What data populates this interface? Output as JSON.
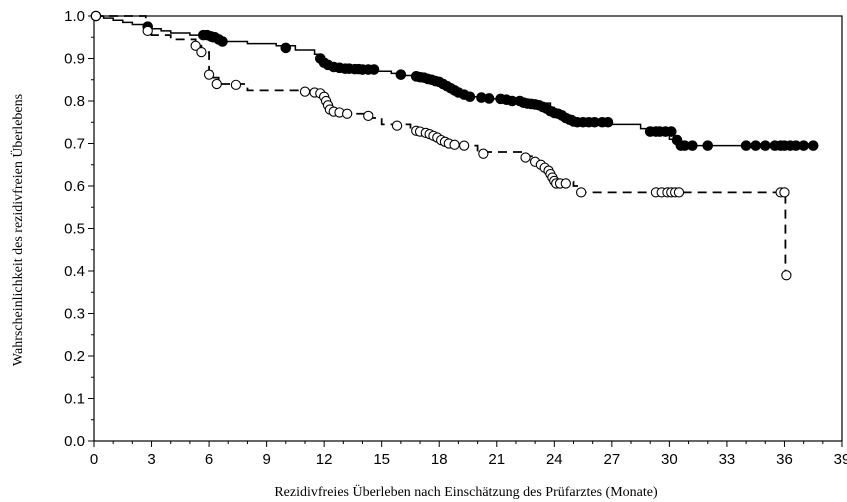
{
  "chart_data": {
    "type": "line",
    "xlabel": "Rezidivfreies Überleben nach Einschätzung des Prüfarztes (Monate)",
    "ylabel": "Wahrscheinlichkeit des rezidivfreien Überlebens",
    "xlim": [
      0,
      39
    ],
    "ylim": [
      0,
      1.0
    ],
    "x_ticks": [
      0,
      3,
      6,
      9,
      12,
      15,
      18,
      21,
      24,
      27,
      30,
      33,
      36,
      39
    ],
    "x_tick_labels": [
      "0",
      "3",
      "6",
      "9",
      "12",
      "15",
      "18",
      "21",
      "24",
      "27",
      "30",
      "33",
      "36",
      "39"
    ],
    "y_ticks": [
      0,
      0.1,
      0.2,
      0.3,
      0.4,
      0.5,
      0.6,
      0.7,
      0.8,
      0.9,
      1.0
    ],
    "y_tick_labels": [
      "0.0",
      "0.1",
      "0.2",
      "0.3",
      "0.4",
      "0.5",
      "0.6",
      "0.7",
      "0.8",
      "0.9",
      "1.0"
    ],
    "series": [
      {
        "style": "solid",
        "marker": "filled-circle",
        "color": "#000000",
        "steps": [
          [
            0,
            1.0
          ],
          [
            0.5,
            0.995
          ],
          [
            1.0,
            0.99
          ],
          [
            1.5,
            0.985
          ],
          [
            2.0,
            0.98
          ],
          [
            2.7,
            0.975
          ],
          [
            3.0,
            0.97
          ],
          [
            3.5,
            0.965
          ],
          [
            4.0,
            0.96
          ],
          [
            5.0,
            0.955
          ],
          [
            6.5,
            0.94
          ],
          [
            8.0,
            0.935
          ],
          [
            9.5,
            0.93
          ],
          [
            10.5,
            0.92
          ],
          [
            11.5,
            0.91
          ],
          [
            11.8,
            0.895
          ],
          [
            12.0,
            0.885
          ],
          [
            12.3,
            0.875
          ],
          [
            13.0,
            0.87
          ],
          [
            15.5,
            0.865
          ],
          [
            16.0,
            0.86
          ],
          [
            17.0,
            0.855
          ],
          [
            17.5,
            0.85
          ],
          [
            18.0,
            0.84
          ],
          [
            18.5,
            0.83
          ],
          [
            19.0,
            0.82
          ],
          [
            19.5,
            0.81
          ],
          [
            20.5,
            0.805
          ],
          [
            22.5,
            0.8
          ],
          [
            23.0,
            0.795
          ],
          [
            23.8,
            0.785
          ],
          [
            24.0,
            0.775
          ],
          [
            24.3,
            0.765
          ],
          [
            25.0,
            0.755
          ],
          [
            25.5,
            0.745
          ],
          [
            28.5,
            0.735
          ],
          [
            29.0,
            0.72
          ],
          [
            30.0,
            0.71
          ],
          [
            30.5,
            0.695
          ],
          [
            37.5,
            0.695
          ]
        ],
        "censored": [
          [
            0.1,
            1.0
          ],
          [
            2.8,
            0.975
          ],
          [
            5.7,
            0.955
          ],
          [
            5.9,
            0.955
          ],
          [
            6.1,
            0.952
          ],
          [
            6.2,
            0.95
          ],
          [
            6.3,
            0.95
          ],
          [
            6.5,
            0.945
          ],
          [
            6.7,
            0.94
          ],
          [
            10.0,
            0.925
          ],
          [
            11.8,
            0.9
          ],
          [
            12.0,
            0.89
          ],
          [
            12.2,
            0.885
          ],
          [
            12.5,
            0.88
          ],
          [
            12.8,
            0.878
          ],
          [
            13.1,
            0.876
          ],
          [
            13.3,
            0.876
          ],
          [
            13.6,
            0.875
          ],
          [
            13.8,
            0.875
          ],
          [
            14.0,
            0.874
          ],
          [
            14.3,
            0.874
          ],
          [
            14.6,
            0.874
          ],
          [
            16.0,
            0.862
          ],
          [
            16.8,
            0.858
          ],
          [
            17.0,
            0.856
          ],
          [
            17.2,
            0.855
          ],
          [
            17.4,
            0.852
          ],
          [
            17.6,
            0.85
          ],
          [
            17.8,
            0.847
          ],
          [
            18.0,
            0.845
          ],
          [
            18.2,
            0.84
          ],
          [
            18.4,
            0.835
          ],
          [
            18.6,
            0.83
          ],
          [
            18.8,
            0.825
          ],
          [
            19.0,
            0.82
          ],
          [
            19.3,
            0.815
          ],
          [
            19.6,
            0.81
          ],
          [
            20.2,
            0.808
          ],
          [
            20.6,
            0.806
          ],
          [
            21.2,
            0.805
          ],
          [
            21.5,
            0.803
          ],
          [
            21.8,
            0.8
          ],
          [
            22.2,
            0.8
          ],
          [
            22.4,
            0.796
          ],
          [
            22.6,
            0.794
          ],
          [
            22.8,
            0.793
          ],
          [
            23.0,
            0.792
          ],
          [
            23.2,
            0.79
          ],
          [
            23.4,
            0.786
          ],
          [
            23.6,
            0.782
          ],
          [
            23.8,
            0.776
          ],
          [
            24.0,
            0.772
          ],
          [
            24.2,
            0.77
          ],
          [
            24.4,
            0.766
          ],
          [
            24.6,
            0.76
          ],
          [
            24.8,
            0.756
          ],
          [
            25.0,
            0.752
          ],
          [
            25.2,
            0.75
          ],
          [
            25.5,
            0.75
          ],
          [
            25.8,
            0.75
          ],
          [
            26.1,
            0.75
          ],
          [
            26.5,
            0.75
          ],
          [
            26.8,
            0.75
          ],
          [
            29.0,
            0.728
          ],
          [
            29.3,
            0.728
          ],
          [
            29.5,
            0.728
          ],
          [
            29.8,
            0.728
          ],
          [
            30.1,
            0.728
          ],
          [
            30.4,
            0.708
          ],
          [
            30.6,
            0.695
          ],
          [
            30.8,
            0.695
          ],
          [
            31.2,
            0.695
          ],
          [
            32.0,
            0.695
          ],
          [
            34.0,
            0.695
          ],
          [
            34.5,
            0.695
          ],
          [
            35.0,
            0.695
          ],
          [
            35.5,
            0.695
          ],
          [
            35.8,
            0.695
          ],
          [
            36.0,
            0.695
          ],
          [
            36.3,
            0.695
          ],
          [
            36.6,
            0.695
          ],
          [
            37.0,
            0.695
          ],
          [
            37.5,
            0.695
          ]
        ]
      },
      {
        "style": "dashed",
        "marker": "open-circle",
        "color": "#000000",
        "steps": [
          [
            0,
            1.0
          ],
          [
            2.7,
            0.97
          ],
          [
            3.0,
            0.955
          ],
          [
            4.0,
            0.945
          ],
          [
            5.3,
            0.93
          ],
          [
            5.6,
            0.915
          ],
          [
            6.0,
            0.87
          ],
          [
            6.2,
            0.855
          ],
          [
            6.5,
            0.84
          ],
          [
            8.0,
            0.825
          ],
          [
            11.8,
            0.81
          ],
          [
            12.0,
            0.795
          ],
          [
            12.3,
            0.775
          ],
          [
            13.0,
            0.77
          ],
          [
            14.5,
            0.76
          ],
          [
            15.0,
            0.745
          ],
          [
            16.5,
            0.73
          ],
          [
            17.5,
            0.715
          ],
          [
            18.0,
            0.705
          ],
          [
            18.5,
            0.695
          ],
          [
            20.0,
            0.68
          ],
          [
            22.5,
            0.67
          ],
          [
            23.0,
            0.655
          ],
          [
            23.5,
            0.64
          ],
          [
            23.8,
            0.625
          ],
          [
            24.0,
            0.61
          ],
          [
            25.0,
            0.6
          ],
          [
            25.4,
            0.585
          ],
          [
            36.0,
            0.585
          ],
          [
            36.05,
            0.39
          ]
        ],
        "censored": [
          [
            0.1,
            1.0
          ],
          [
            2.8,
            0.965
          ],
          [
            5.3,
            0.93
          ],
          [
            5.6,
            0.915
          ],
          [
            6.0,
            0.862
          ],
          [
            6.4,
            0.84
          ],
          [
            7.4,
            0.838
          ],
          [
            11.0,
            0.822
          ],
          [
            11.5,
            0.82
          ],
          [
            11.8,
            0.818
          ],
          [
            12.0,
            0.81
          ],
          [
            12.1,
            0.8
          ],
          [
            12.2,
            0.79
          ],
          [
            12.3,
            0.78
          ],
          [
            12.5,
            0.775
          ],
          [
            12.8,
            0.773
          ],
          [
            13.2,
            0.77
          ],
          [
            14.3,
            0.765
          ],
          [
            15.8,
            0.742
          ],
          [
            16.8,
            0.73
          ],
          [
            17.0,
            0.728
          ],
          [
            17.3,
            0.725
          ],
          [
            17.5,
            0.722
          ],
          [
            17.7,
            0.718
          ],
          [
            17.9,
            0.714
          ],
          [
            18.1,
            0.708
          ],
          [
            18.3,
            0.704
          ],
          [
            18.5,
            0.7
          ],
          [
            18.8,
            0.697
          ],
          [
            19.3,
            0.695
          ],
          [
            20.3,
            0.676
          ],
          [
            22.5,
            0.667
          ],
          [
            23.0,
            0.657
          ],
          [
            23.3,
            0.65
          ],
          [
            23.5,
            0.643
          ],
          [
            23.7,
            0.636
          ],
          [
            23.8,
            0.628
          ],
          [
            23.9,
            0.62
          ],
          [
            24.0,
            0.612
          ],
          [
            24.1,
            0.606
          ],
          [
            24.3,
            0.606
          ],
          [
            24.6,
            0.606
          ],
          [
            25.4,
            0.585
          ],
          [
            29.3,
            0.585
          ],
          [
            29.6,
            0.585
          ],
          [
            29.9,
            0.585
          ],
          [
            30.1,
            0.585
          ],
          [
            30.3,
            0.585
          ],
          [
            30.5,
            0.585
          ],
          [
            35.8,
            0.585
          ],
          [
            36.0,
            0.585
          ],
          [
            36.1,
            0.39
          ]
        ]
      }
    ]
  }
}
